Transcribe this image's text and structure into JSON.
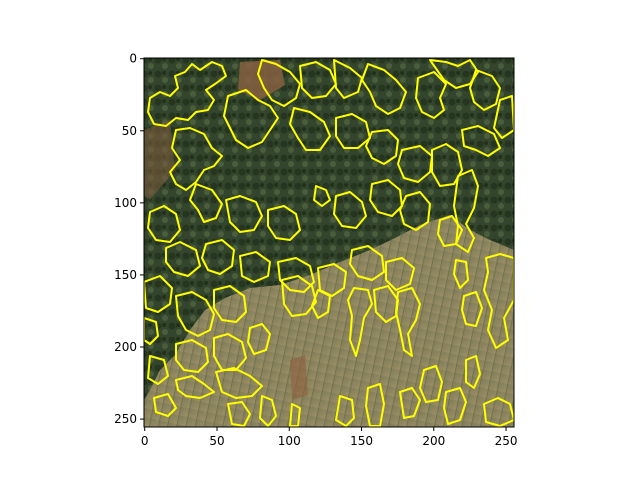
{
  "figure": {
    "image_description_free": true,
    "axes": {
      "x_ticks": [
        "0",
        "50",
        "100",
        "150",
        "200",
        "250"
      ],
      "y_ticks": [
        "0",
        "50",
        "100",
        "150",
        "200",
        "250"
      ],
      "xlim": [
        -0.5,
        255.5
      ],
      "ylim": [
        255.5,
        -0.5
      ]
    },
    "colors": {
      "contour": "#ffff00",
      "forest_dark": "#2f3f2a",
      "forest_mid": "#3f5234",
      "field": "#8f8a60",
      "field_light": "#a49a70",
      "soil": "#8a5c3a"
    }
  }
}
